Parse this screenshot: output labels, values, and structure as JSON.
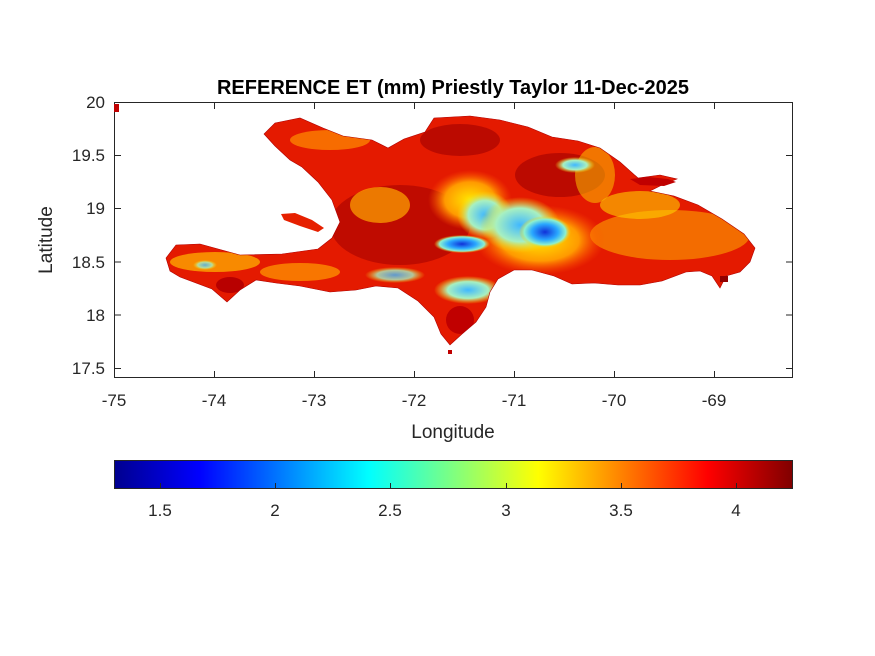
{
  "figure": {
    "title": "REFERENCE ET (mm) Priestly Taylor 11-Dec-2025",
    "xlabel": "Longitude",
    "ylabel": "Latitude"
  },
  "chart_data": {
    "type": "heatmap",
    "title": "REFERENCE ET (mm) Priestly Taylor 11-Dec-2025",
    "xlabel": "Longitude",
    "ylabel": "Latitude",
    "xlim": [
      -75,
      -68.22
    ],
    "ylim": [
      17.42,
      20
    ],
    "x_ticks": [
      "-75",
      "-74",
      "-73",
      "-72",
      "-71",
      "-70",
      "-69"
    ],
    "y_ticks": [
      "20",
      "19.5",
      "19",
      "18.5",
      "18",
      "17.5"
    ],
    "colormap": "jet",
    "colorbar": {
      "orientation": "horizontal",
      "location": "below",
      "range": [
        1.3,
        4.25
      ],
      "ticks": [
        "1.5",
        "2",
        "2.5",
        "3",
        "3.5",
        "4"
      ]
    },
    "grid": false,
    "colors": {
      "low": "#00008f",
      "mid": "#ffff00",
      "high": "#800000"
    }
  }
}
